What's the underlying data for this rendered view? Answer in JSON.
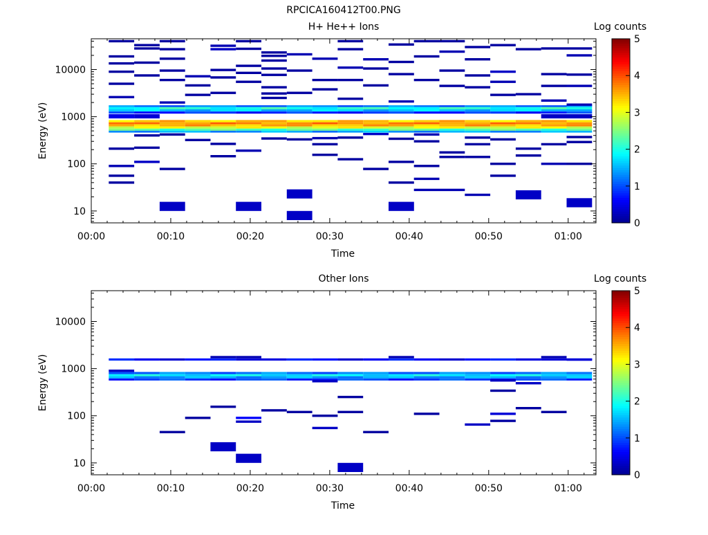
{
  "figure_title": "RPCICA160412T00.PNG",
  "colors": {
    "colormap": [
      "#00008f",
      "#0000ff",
      "#0080ff",
      "#00ffff",
      "#80ff80",
      "#ffff00",
      "#ff8000",
      "#ff0000",
      "#800000"
    ]
  },
  "chart_data": [
    {
      "type": "heatmap",
      "title": "H+ He++ Ions",
      "xlabel": "Time",
      "ylabel": "Energy (eV)",
      "x_ticks": [
        "00:00",
        "00:10",
        "00:20",
        "00:30",
        "00:40",
        "00:50",
        "01:00"
      ],
      "x_tick_minutes": [
        0,
        10,
        20,
        30,
        40,
        50,
        60
      ],
      "xlim_minutes": [
        0,
        63.5
      ],
      "y_scale": "log",
      "ylim": [
        5.6,
        45000
      ],
      "y_ticks": [
        "10",
        "100",
        "1000",
        "10000"
      ],
      "y_tick_values": [
        10,
        100,
        1000,
        10000
      ],
      "colorbar": {
        "label": "Log counts",
        "range": [
          0,
          5
        ],
        "ticks": [
          "0",
          "1",
          "2",
          "3",
          "4",
          "5"
        ],
        "tick_values": [
          0,
          1,
          2,
          3,
          4,
          5
        ]
      },
      "time_bins_minutes": [
        2.2,
        5.4,
        8.6,
        11.8,
        15.0,
        18.2,
        21.4,
        24.6,
        27.8,
        31.0,
        34.2,
        37.4,
        40.6,
        43.8,
        47.0,
        50.2,
        53.4,
        56.6,
        59.8,
        63.0
      ],
      "main_band": [
        {
          "energy": [
            1750,
            1600
          ],
          "level": 1.2
        },
        {
          "energy": [
            1600,
            1430
          ],
          "level": 2.0
        },
        {
          "energy": [
            1430,
            1290
          ],
          "level": 1.6
        },
        {
          "energy": [
            1290,
            1160
          ],
          "level": 0.8
        },
        {
          "energy": [
            850,
            760
          ],
          "level": 3.4
        },
        {
          "energy": [
            760,
            690
          ],
          "level": 3.7
        },
        {
          "energy": [
            690,
            620
          ],
          "level": 3.5
        },
        {
          "energy": [
            620,
            560
          ],
          "level": 3.0
        },
        {
          "energy": [
            560,
            505
          ],
          "level": 2.3
        },
        {
          "energy": [
            505,
            460
          ],
          "level": 1.4
        }
      ],
      "sparse_bins": [
        {
          "t": 0,
          "e": 40000,
          "v": 0.1
        },
        {
          "t": 0,
          "e": 19000,
          "v": 0.1
        },
        {
          "t": 0,
          "e": 13500,
          "v": 0.1
        },
        {
          "t": 0,
          "e": 9000,
          "v": 0.1
        },
        {
          "t": 0,
          "e": 5000,
          "v": 0.1
        },
        {
          "t": 0,
          "e": 2600,
          "v": 0.2
        },
        {
          "t": 0,
          "e": 210,
          "v": 0.1
        },
        {
          "t": 0,
          "e": 90,
          "v": 0.2
        },
        {
          "t": 0,
          "e": 56,
          "v": 0.1
        },
        {
          "t": 0,
          "e": 40,
          "v": 0.1
        },
        {
          "t": 1,
          "e": 33000,
          "v": 0.1
        },
        {
          "t": 1,
          "e": 28000,
          "v": 0.1
        },
        {
          "t": 1,
          "e": 14000,
          "v": 0.1
        },
        {
          "t": 1,
          "e": 7500,
          "v": 0.1
        },
        {
          "t": 1,
          "e": 400,
          "v": 0.1
        },
        {
          "t": 1,
          "e": 220,
          "v": 0.1
        },
        {
          "t": 1,
          "e": 110,
          "v": 0.3
        },
        {
          "t": 2,
          "e": 40000,
          "v": 0.1
        },
        {
          "t": 2,
          "e": 27000,
          "v": 0.1
        },
        {
          "t": 2,
          "e": 17000,
          "v": 0.1
        },
        {
          "t": 2,
          "e": 9500,
          "v": 0.1
        },
        {
          "t": 2,
          "e": 6000,
          "v": 0.1
        },
        {
          "t": 2,
          "e": 2000,
          "v": 0.2
        },
        {
          "t": 2,
          "e": 420,
          "v": 0.1
        },
        {
          "t": 2,
          "e": 78,
          "v": 0.1
        },
        {
          "t": 2,
          "e": 12.5,
          "v": 0.3
        },
        {
          "t": 3,
          "e": 7200,
          "v": 0.2
        },
        {
          "t": 3,
          "e": 4600,
          "v": 0.1
        },
        {
          "t": 3,
          "e": 2900,
          "v": 0.1
        },
        {
          "t": 3,
          "e": 320,
          "v": 0.1
        },
        {
          "t": 4,
          "e": 32000,
          "v": 0.2
        },
        {
          "t": 4,
          "e": 27000,
          "v": 0.3
        },
        {
          "t": 4,
          "e": 9800,
          "v": 0.1
        },
        {
          "t": 4,
          "e": 6800,
          "v": 0.1
        },
        {
          "t": 4,
          "e": 3200,
          "v": 0.1
        },
        {
          "t": 4,
          "e": 265,
          "v": 0.1
        },
        {
          "t": 4,
          "e": 145,
          "v": 0.1
        },
        {
          "t": 5,
          "e": 40000,
          "v": 0.1
        },
        {
          "t": 5,
          "e": 27500,
          "v": 0.1
        },
        {
          "t": 5,
          "e": 12000,
          "v": 0.1
        },
        {
          "t": 5,
          "e": 8500,
          "v": 0.1
        },
        {
          "t": 5,
          "e": 5500,
          "v": 0.1
        },
        {
          "t": 5,
          "e": 190,
          "v": 0.2
        },
        {
          "t": 5,
          "e": 12.5,
          "v": 0.3
        },
        {
          "t": 6,
          "e": 23000,
          "v": 0.1
        },
        {
          "t": 6,
          "e": 19500,
          "v": 0.1
        },
        {
          "t": 6,
          "e": 15500,
          "v": 0.1
        },
        {
          "t": 6,
          "e": 10500,
          "v": 0.1
        },
        {
          "t": 6,
          "e": 7700,
          "v": 0.1
        },
        {
          "t": 6,
          "e": 4200,
          "v": 0.1
        },
        {
          "t": 6,
          "e": 3100,
          "v": 0.1
        },
        {
          "t": 6,
          "e": 2500,
          "v": 0.1
        },
        {
          "t": 6,
          "e": 345,
          "v": 0.1
        },
        {
          "t": 7,
          "e": 21000,
          "v": 0.2
        },
        {
          "t": 7,
          "e": 9500,
          "v": 0.1
        },
        {
          "t": 7,
          "e": 3200,
          "v": 0.1
        },
        {
          "t": 7,
          "e": 330,
          "v": 0.1
        },
        {
          "t": 7,
          "e": 23,
          "v": 0.3
        },
        {
          "t": 7,
          "e": 8,
          "v": 0.3
        },
        {
          "t": 8,
          "e": 17000,
          "v": 0.2
        },
        {
          "t": 8,
          "e": 6000,
          "v": 0.1
        },
        {
          "t": 8,
          "e": 3800,
          "v": 0.1
        },
        {
          "t": 8,
          "e": 350,
          "v": 0.2
        },
        {
          "t": 8,
          "e": 260,
          "v": 0.1
        },
        {
          "t": 8,
          "e": 155,
          "v": 0.1
        },
        {
          "t": 9,
          "e": 40000,
          "v": 0.1
        },
        {
          "t": 9,
          "e": 27000,
          "v": 0.1
        },
        {
          "t": 9,
          "e": 11000,
          "v": 0.2
        },
        {
          "t": 9,
          "e": 6000,
          "v": 0.1
        },
        {
          "t": 9,
          "e": 2400,
          "v": 0.1
        },
        {
          "t": 9,
          "e": 360,
          "v": 0.1
        },
        {
          "t": 9,
          "e": 125,
          "v": 0.1
        },
        {
          "t": 10,
          "e": 16500,
          "v": 0.2
        },
        {
          "t": 10,
          "e": 10500,
          "v": 0.1
        },
        {
          "t": 10,
          "e": 4600,
          "v": 0.1
        },
        {
          "t": 10,
          "e": 430,
          "v": 0.3
        },
        {
          "t": 10,
          "e": 78,
          "v": 0.1
        },
        {
          "t": 11,
          "e": 34000,
          "v": 0.1
        },
        {
          "t": 11,
          "e": 14500,
          "v": 0.1
        },
        {
          "t": 11,
          "e": 8000,
          "v": 0.1
        },
        {
          "t": 11,
          "e": 2100,
          "v": 0.2
        },
        {
          "t": 11,
          "e": 340,
          "v": 0.1
        },
        {
          "t": 11,
          "e": 110,
          "v": 0.1
        },
        {
          "t": 11,
          "e": 40,
          "v": 0.1
        },
        {
          "t": 11,
          "e": 12.5,
          "v": 0.3
        },
        {
          "t": 12,
          "e": 40000,
          "v": 0.1
        },
        {
          "t": 12,
          "e": 19000,
          "v": 0.1
        },
        {
          "t": 12,
          "e": 6000,
          "v": 0.1
        },
        {
          "t": 12,
          "e": 420,
          "v": 0.2
        },
        {
          "t": 12,
          "e": 300,
          "v": 0.1
        },
        {
          "t": 12,
          "e": 90,
          "v": 0.1
        },
        {
          "t": 12,
          "e": 48,
          "v": 0.2
        },
        {
          "t": 12,
          "e": 28,
          "v": 0.2
        },
        {
          "t": 13,
          "e": 40000,
          "v": 0.1
        },
        {
          "t": 13,
          "e": 24000,
          "v": 0.2
        },
        {
          "t": 13,
          "e": 9500,
          "v": 0.1
        },
        {
          "t": 13,
          "e": 4500,
          "v": 0.1
        },
        {
          "t": 13,
          "e": 175,
          "v": 0.1
        },
        {
          "t": 13,
          "e": 140,
          "v": 0.1
        },
        {
          "t": 13,
          "e": 28,
          "v": 0.2
        },
        {
          "t": 14,
          "e": 30000,
          "v": 0.1
        },
        {
          "t": 14,
          "e": 16500,
          "v": 0.1
        },
        {
          "t": 14,
          "e": 7500,
          "v": 0.1
        },
        {
          "t": 14,
          "e": 4200,
          "v": 0.1
        },
        {
          "t": 14,
          "e": 360,
          "v": 0.1
        },
        {
          "t": 14,
          "e": 260,
          "v": 0.1
        },
        {
          "t": 14,
          "e": 140,
          "v": 0.1
        },
        {
          "t": 14,
          "e": 22,
          "v": 0.2
        },
        {
          "t": 15,
          "e": 33000,
          "v": 0.1
        },
        {
          "t": 15,
          "e": 9000,
          "v": 0.3
        },
        {
          "t": 15,
          "e": 5500,
          "v": 0.2
        },
        {
          "t": 15,
          "e": 2900,
          "v": 0.1
        },
        {
          "t": 15,
          "e": 330,
          "v": 0.1
        },
        {
          "t": 15,
          "e": 100,
          "v": 0.1
        },
        {
          "t": 15,
          "e": 56,
          "v": 0.1
        },
        {
          "t": 16,
          "e": 27000,
          "v": 0.1
        },
        {
          "t": 16,
          "e": 3000,
          "v": 0.1
        },
        {
          "t": 16,
          "e": 210,
          "v": 0.1
        },
        {
          "t": 16,
          "e": 150,
          "v": 0.1
        },
        {
          "t": 16,
          "e": 22,
          "v": 0.3
        },
        {
          "t": 17,
          "e": 28000,
          "v": 0.1
        },
        {
          "t": 17,
          "e": 8000,
          "v": 0.1
        },
        {
          "t": 17,
          "e": 4500,
          "v": 0.1
        },
        {
          "t": 17,
          "e": 2200,
          "v": 0.2
        },
        {
          "t": 17,
          "e": 260,
          "v": 0.1
        },
        {
          "t": 17,
          "e": 100,
          "v": 0.2
        },
        {
          "t": 18,
          "e": 28000,
          "v": 0.1
        },
        {
          "t": 18,
          "e": 20000,
          "v": 0.2
        },
        {
          "t": 18,
          "e": 7800,
          "v": 0.1
        },
        {
          "t": 18,
          "e": 4500,
          "v": 0.2
        },
        {
          "t": 18,
          "e": 1800,
          "v": 0.2
        },
        {
          "t": 18,
          "e": 370,
          "v": 0.1
        },
        {
          "t": 18,
          "e": 290,
          "v": 0.1
        },
        {
          "t": 18,
          "e": 100,
          "v": 0.1
        },
        {
          "t": 18,
          "e": 15,
          "v": 0.3
        }
      ],
      "sparse_dark_rows": [
        {
          "t": 18,
          "e": [
            1130,
            920
          ],
          "v": 0.3
        },
        {
          "t": 17,
          "e": [
            1130,
            920
          ],
          "v": 0.3
        },
        {
          "t": 0,
          "e": [
            1130,
            920
          ],
          "v": 0.5
        },
        {
          "t": 1,
          "e": [
            1130,
            920
          ],
          "v": 0.4
        }
      ]
    },
    {
      "type": "heatmap",
      "title": "Other Ions",
      "xlabel": "Time",
      "ylabel": "Energy (eV)",
      "x_ticks": [
        "00:00",
        "00:10",
        "00:20",
        "00:30",
        "00:40",
        "00:50",
        "01:00"
      ],
      "x_tick_minutes": [
        0,
        10,
        20,
        30,
        40,
        50,
        60
      ],
      "xlim_minutes": [
        0,
        63.5
      ],
      "y_scale": "log",
      "ylim": [
        5.6,
        45000
      ],
      "y_ticks": [
        "10",
        "100",
        "1000",
        "10000"
      ],
      "y_tick_values": [
        10,
        100,
        1000,
        10000
      ],
      "colorbar": {
        "label": "Log counts",
        "range": [
          0,
          5
        ],
        "ticks": [
          "0",
          "1",
          "2",
          "3",
          "4",
          "5"
        ],
        "tick_values": [
          0,
          1,
          2,
          3,
          4,
          5
        ]
      },
      "time_bins_minutes": [
        2.2,
        5.4,
        8.6,
        11.8,
        15.0,
        18.2,
        21.4,
        24.6,
        27.8,
        31.0,
        34.2,
        37.4,
        40.6,
        43.8,
        47.0,
        50.2,
        53.4,
        56.6,
        59.8,
        63.0
      ],
      "main_band": [
        {
          "energy": [
            1650,
            1480
          ],
          "level": 0.6
        },
        {
          "energy": [
            850,
            760
          ],
          "level": 1.2
        },
        {
          "energy": [
            760,
            690
          ],
          "level": 1.8
        },
        {
          "energy": [
            690,
            620
          ],
          "level": 1.4
        },
        {
          "energy": [
            620,
            560
          ],
          "level": 0.9
        }
      ],
      "sparse_bins": [
        {
          "t": 4,
          "e": 1750,
          "v": 0.2
        },
        {
          "t": 5,
          "e": 1750,
          "v": 0.2
        },
        {
          "t": 11,
          "e": 1750,
          "v": 0.2
        },
        {
          "t": 17,
          "e": 1750,
          "v": 0.2
        },
        {
          "t": 0,
          "e": 900,
          "v": 0.3
        },
        {
          "t": 8,
          "e": 540,
          "v": 0.3
        },
        {
          "t": 15,
          "e": 560,
          "v": 0.3
        },
        {
          "t": 16,
          "e": 490,
          "v": 0.3
        },
        {
          "t": 2,
          "e": 45,
          "v": 0.1
        },
        {
          "t": 3,
          "e": 90,
          "v": 0.1
        },
        {
          "t": 4,
          "e": 155,
          "v": 0.1
        },
        {
          "t": 4,
          "e": 22,
          "v": 0.3
        },
        {
          "t": 5,
          "e": 90,
          "v": 0.6
        },
        {
          "t": 5,
          "e": 75,
          "v": 0.3
        },
        {
          "t": 5,
          "e": 12.5,
          "v": 0.3
        },
        {
          "t": 6,
          "e": 130,
          "v": 0.1
        },
        {
          "t": 7,
          "e": 120,
          "v": 0.1
        },
        {
          "t": 8,
          "e": 100,
          "v": 0.1
        },
        {
          "t": 8,
          "e": 55,
          "v": 0.3
        },
        {
          "t": 9,
          "e": 250,
          "v": 0.1
        },
        {
          "t": 9,
          "e": 120,
          "v": 0.1
        },
        {
          "t": 9,
          "e": 8,
          "v": 0.3
        },
        {
          "t": 10,
          "e": 45,
          "v": 0.1
        },
        {
          "t": 12,
          "e": 110,
          "v": 0.1
        },
        {
          "t": 14,
          "e": 65,
          "v": 0.3
        },
        {
          "t": 15,
          "e": 340,
          "v": 0.1
        },
        {
          "t": 15,
          "e": 110,
          "v": 0.4
        },
        {
          "t": 15,
          "e": 78,
          "v": 0.1
        },
        {
          "t": 16,
          "e": 145,
          "v": 0.1
        },
        {
          "t": 17,
          "e": 120,
          "v": 0.1
        },
        {
          "t": 18,
          "e": 1550,
          "v": 0.4
        }
      ],
      "sparse_dark_rows": []
    }
  ]
}
